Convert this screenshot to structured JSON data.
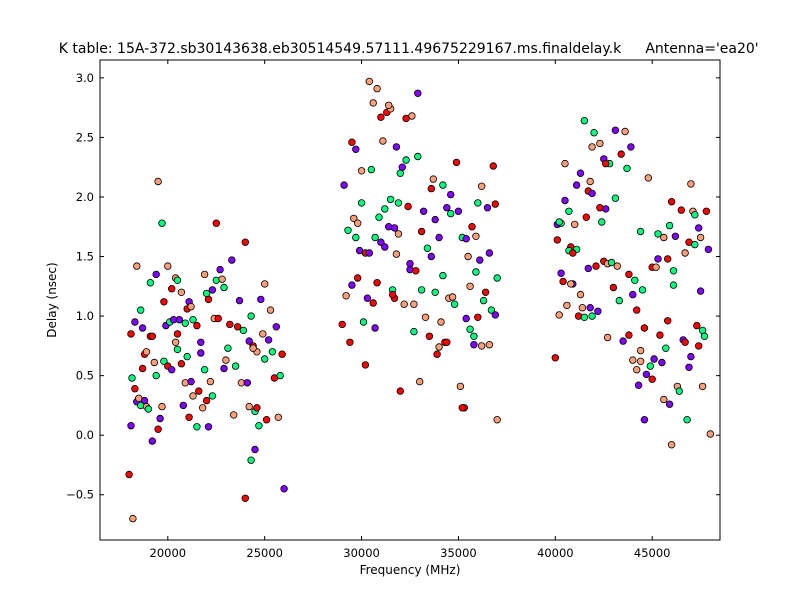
{
  "chart_data": {
    "type": "scatter",
    "title": "K table: 15A-372.sb30143638.eb30514549.57111.49675229167.ms.finaldelay.k",
    "subtitle": "Antenna='ea20'",
    "xlabel": "Frequency (MHz)",
    "ylabel": "Delay (nsec)",
    "xlim": [
      16500,
      48500
    ],
    "ylim": [
      -0.88,
      3.15
    ],
    "xticks": [
      20000,
      25000,
      30000,
      35000,
      40000,
      45000
    ],
    "xtick_labels": [
      "20000",
      "25000",
      "30000",
      "35000",
      "40000",
      "45000"
    ],
    "yticks": [
      -0.5,
      0.0,
      0.5,
      1.0,
      1.5,
      2.0,
      2.5,
      3.0
    ],
    "ytick_labels": [
      "−0.5",
      "0.0",
      "0.5",
      "1.0",
      "1.5",
      "2.0",
      "2.5",
      "3.0"
    ],
    "grid": false,
    "legend": "none",
    "marker": "circle, multicolored, black edge",
    "palette": [
      "#ff0000",
      "#00cc00",
      "#0000ff",
      "#ff00ff",
      "#00ffff",
      "#ffff00",
      "#ff8000",
      "#8000ff",
      "#008000",
      "#800000",
      "#ff69b4",
      "#808080",
      "#ffffff",
      "#000000",
      "#ffa07a",
      "#90ee90",
      "#87cefa",
      "#daa520",
      "#2e8b57",
      "#4b0082",
      "#ff4500",
      "#00ff7f",
      "#c0c0c0",
      "#556b2f",
      "#ff1493",
      "#20b2aa",
      "#b22222",
      "#7b68ee"
    ],
    "points": [
      [
        18000,
        -0.33
      ],
      [
        18100,
        0.08
      ],
      [
        18200,
        -0.7
      ],
      [
        18150,
        0.48
      ],
      [
        18300,
        0.39
      ],
      [
        18400,
        0.28
      ],
      [
        18500,
        0.31
      ],
      [
        18600,
        0.25
      ],
      [
        18700,
        0.56
      ],
      [
        18800,
        0.29
      ],
      [
        18900,
        0.24
      ],
      [
        19000,
        0.22
      ],
      [
        19100,
        0.83
      ],
      [
        19200,
        -0.05
      ],
      [
        19300,
        0.61
      ],
      [
        19400,
        0.5
      ],
      [
        19500,
        0.05
      ],
      [
        19600,
        0.14
      ],
      [
        19700,
        0.24
      ],
      [
        19800,
        0.62
      ],
      [
        18100,
        0.85
      ],
      [
        18300,
        0.95
      ],
      [
        18400,
        1.42
      ],
      [
        18600,
        1.05
      ],
      [
        18800,
        0.68
      ],
      [
        18700,
        0.9
      ],
      [
        18900,
        0.7
      ],
      [
        19100,
        1.28
      ],
      [
        19200,
        0.83
      ],
      [
        19400,
        1.35
      ],
      [
        19500,
        2.13
      ],
      [
        19700,
        1.78
      ],
      [
        19800,
        1.12
      ],
      [
        19900,
        0.92
      ],
      [
        20000,
        1.42
      ],
      [
        20100,
        0.95
      ],
      [
        20200,
        1.23
      ],
      [
        20300,
        0.97
      ],
      [
        20400,
        1.32
      ],
      [
        20500,
        1.3
      ],
      [
        20000,
        0.58
      ],
      [
        20200,
        0.55
      ],
      [
        20400,
        0.78
      ],
      [
        20500,
        0.72
      ],
      [
        20700,
        0.6
      ],
      [
        20800,
        0.25
      ],
      [
        20900,
        0.44
      ],
      [
        21000,
        0.66
      ],
      [
        21100,
        0.15
      ],
      [
        21200,
        0.45
      ],
      [
        21300,
        0.33
      ],
      [
        21500,
        0.07
      ],
      [
        21600,
        0.37
      ],
      [
        21700,
        0.69
      ],
      [
        21800,
        0.23
      ],
      [
        21900,
        0.55
      ],
      [
        22000,
        0.29
      ],
      [
        22100,
        0.07
      ],
      [
        22200,
        0.45
      ],
      [
        22300,
        0.33
      ],
      [
        20500,
        0.85
      ],
      [
        20600,
        0.97
      ],
      [
        20700,
        1.2
      ],
      [
        20900,
        0.94
      ],
      [
        21000,
        1.06
      ],
      [
        21100,
        1.12
      ],
      [
        21200,
        1.08
      ],
      [
        21300,
        0.97
      ],
      [
        21500,
        0.92
      ],
      [
        21700,
        0.78
      ],
      [
        21900,
        1.35
      ],
      [
        22000,
        1.19
      ],
      [
        22100,
        1.14
      ],
      [
        22300,
        1.22
      ],
      [
        22400,
        0.98
      ],
      [
        22500,
        1.3
      ],
      [
        22600,
        0.98
      ],
      [
        22700,
        1.39
      ],
      [
        22800,
        1.31
      ],
      [
        22900,
        1.24
      ],
      [
        22500,
        1.78
      ],
      [
        22900,
        0.56
      ],
      [
        23000,
        0.63
      ],
      [
        23100,
        0.73
      ],
      [
        23200,
        0.93
      ],
      [
        23300,
        1.47
      ],
      [
        23400,
        0.17
      ],
      [
        23500,
        0.58
      ],
      [
        23600,
        0.91
      ],
      [
        23700,
        1.13
      ],
      [
        23800,
        0.44
      ],
      [
        23900,
        0.88
      ],
      [
        24000,
        1.62
      ],
      [
        24100,
        0.44
      ],
      [
        24200,
        0.24
      ],
      [
        24300,
        -0.21
      ],
      [
        24400,
        0.75
      ],
      [
        24500,
        -0.12
      ],
      [
        24600,
        0.7
      ],
      [
        24700,
        0.08
      ],
      [
        24000,
        -0.53
      ],
      [
        24200,
        0.79
      ],
      [
        24400,
        0.73
      ],
      [
        24500,
        0.2
      ],
      [
        24600,
        0.23
      ],
      [
        24800,
        1.14
      ],
      [
        24900,
        0.85
      ],
      [
        25000,
        0.64
      ],
      [
        25100,
        0.13
      ],
      [
        25200,
        0.8
      ],
      [
        25300,
        1.05
      ],
      [
        25400,
        0.7
      ],
      [
        25500,
        0.48
      ],
      [
        25600,
        0.91
      ],
      [
        25700,
        0.15
      ],
      [
        25800,
        0.5
      ],
      [
        25900,
        0.68
      ],
      [
        26000,
        -0.45
      ],
      [
        25000,
        1.27
      ],
      [
        24300,
        1.0
      ],
      [
        29000,
        0.93
      ],
      [
        29100,
        2.1
      ],
      [
        29200,
        1.17
      ],
      [
        29300,
        1.72
      ],
      [
        29400,
        0.78
      ],
      [
        29500,
        1.26
      ],
      [
        29600,
        1.82
      ],
      [
        29700,
        1.66
      ],
      [
        29800,
        1.32
      ],
      [
        29900,
        1.55
      ],
      [
        30000,
        2.22
      ],
      [
        30100,
        0.95
      ],
      [
        30200,
        0.59
      ],
      [
        30300,
        1.15
      ],
      [
        30400,
        2.97
      ],
      [
        30500,
        2.23
      ],
      [
        30600,
        1.11
      ],
      [
        30700,
        0.9
      ],
      [
        30800,
        2.91
      ],
      [
        30900,
        1.83
      ],
      [
        29500,
        2.46
      ],
      [
        29700,
        2.4
      ],
      [
        29800,
        1.78
      ],
      [
        30000,
        1.95
      ],
      [
        30200,
        1.53
      ],
      [
        30400,
        1.53
      ],
      [
        30600,
        2.79
      ],
      [
        30700,
        1.66
      ],
      [
        30800,
        1.28
      ],
      [
        31000,
        1.62
      ],
      [
        31100,
        2.47
      ],
      [
        31200,
        1.9
      ],
      [
        31300,
        2.71
      ],
      [
        31400,
        1.75
      ],
      [
        31500,
        2.74
      ],
      [
        31600,
        1.22
      ],
      [
        31700,
        1.15
      ],
      [
        31800,
        2.42
      ],
      [
        31900,
        1.69
      ],
      [
        32000,
        2.2
      ],
      [
        31000,
        2.67
      ],
      [
        31200,
        1.58
      ],
      [
        31400,
        2.77
      ],
      [
        31500,
        1.98
      ],
      [
        31600,
        1.18
      ],
      [
        31700,
        1.74
      ],
      [
        31800,
        1.52
      ],
      [
        31900,
        1.95
      ],
      [
        32000,
        0.37
      ],
      [
        32100,
        2.25
      ],
      [
        32200,
        1.1
      ],
      [
        32300,
        2.31
      ],
      [
        32400,
        1.92
      ],
      [
        32500,
        1.39
      ],
      [
        32600,
        2.68
      ],
      [
        32700,
        0.87
      ],
      [
        32800,
        1.38
      ],
      [
        32900,
        2.87
      ],
      [
        33000,
        0.45
      ],
      [
        33100,
        1.22
      ],
      [
        32300,
        2.66
      ],
      [
        32500,
        1.44
      ],
      [
        32700,
        1.1
      ],
      [
        32900,
        2.34
      ],
      [
        33100,
        1.71
      ],
      [
        33200,
        1.88
      ],
      [
        33300,
        0.99
      ],
      [
        33400,
        1.57
      ],
      [
        33500,
        0.83
      ],
      [
        33600,
        1.5
      ],
      [
        33700,
        2.15
      ],
      [
        33800,
        1.2
      ],
      [
        33900,
        0.68
      ],
      [
        34000,
        1.66
      ],
      [
        34100,
        0.95
      ],
      [
        34200,
        1.34
      ],
      [
        34300,
        0.78
      ],
      [
        34400,
        1.91
      ],
      [
        34500,
        1.15
      ],
      [
        34600,
        1.86
      ],
      [
        33600,
        2.07
      ],
      [
        33800,
        1.81
      ],
      [
        34000,
        0.74
      ],
      [
        34200,
        2.1
      ],
      [
        34400,
        0.78
      ],
      [
        34600,
        2.02
      ],
      [
        34700,
        1.16
      ],
      [
        34800,
        1.1
      ],
      [
        34900,
        2.29
      ],
      [
        35000,
        1.88
      ],
      [
        35100,
        0.41
      ],
      [
        35200,
        1.66
      ],
      [
        35300,
        0.23
      ],
      [
        35400,
        0.98
      ],
      [
        35500,
        1.5
      ],
      [
        35600,
        0.89
      ],
      [
        35700,
        1.75
      ],
      [
        35800,
        0.76
      ],
      [
        35900,
        1.67
      ],
      [
        36000,
        1.95
      ],
      [
        35200,
        0.23
      ],
      [
        35400,
        1.65
      ],
      [
        35600,
        1.25
      ],
      [
        35800,
        0.83
      ],
      [
        36000,
        0.99
      ],
      [
        36100,
        1.47
      ],
      [
        36200,
        2.09
      ],
      [
        36300,
        1.13
      ],
      [
        36400,
        1.2
      ],
      [
        36500,
        1.91
      ],
      [
        36600,
        0.76
      ],
      [
        36700,
        1.05
      ],
      [
        36800,
        2.26
      ],
      [
        36900,
        1.01
      ],
      [
        37000,
        0.13
      ],
      [
        37000,
        1.32
      ],
      [
        36900,
        1.94
      ],
      [
        36600,
        1.53
      ],
      [
        36200,
        0.75
      ],
      [
        35900,
        1.37
      ],
      [
        40000,
        0.65
      ],
      [
        40100,
        1.77
      ],
      [
        40200,
        1.01
      ],
      [
        40300,
        1.78
      ],
      [
        40400,
        1.29
      ],
      [
        40500,
        1.97
      ],
      [
        40600,
        1.09
      ],
      [
        40700,
        1.88
      ],
      [
        40800,
        1.58
      ],
      [
        40900,
        1.27
      ],
      [
        41000,
        1.77
      ],
      [
        41100,
        1.56
      ],
      [
        41200,
        1.0
      ],
      [
        41300,
        2.2
      ],
      [
        41400,
        1.07
      ],
      [
        41500,
        2.64
      ],
      [
        41600,
        1.83
      ],
      [
        41700,
        1.4
      ],
      [
        41800,
        2.13
      ],
      [
        41900,
        1.0
      ],
      [
        40100,
        1.64
      ],
      [
        40300,
        1.36
      ],
      [
        40500,
        2.28
      ],
      [
        40700,
        1.55
      ],
      [
        40900,
        1.53
      ],
      [
        41100,
        2.1
      ],
      [
        41300,
        1.18
      ],
      [
        41500,
        0.99
      ],
      [
        41700,
        2.05
      ],
      [
        41800,
        1.07
      ],
      [
        41900,
        2.42
      ],
      [
        42000,
        2.54
      ],
      [
        42100,
        1.42
      ],
      [
        42200,
        1.04
      ],
      [
        42300,
        2.45
      ],
      [
        42400,
        1.79
      ],
      [
        42500,
        1.46
      ],
      [
        42600,
        1.9
      ],
      [
        42700,
        1.44
      ],
      [
        42800,
        2.28
      ],
      [
        42300,
        1.91
      ],
      [
        42500,
        2.32
      ],
      [
        42700,
        0.82
      ],
      [
        42900,
        1.45
      ],
      [
        43000,
        1.24
      ],
      [
        43100,
        2.56
      ],
      [
        43200,
        1.42
      ],
      [
        43300,
        1.13
      ],
      [
        43400,
        2.36
      ],
      [
        43500,
        0.79
      ],
      [
        43600,
        2.55
      ],
      [
        43700,
        2.24
      ],
      [
        43800,
        1.35
      ],
      [
        43900,
        2.42
      ],
      [
        44000,
        0.63
      ],
      [
        44100,
        1.3
      ],
      [
        44200,
        1.05
      ],
      [
        44300,
        0.42
      ],
      [
        44400,
        0.71
      ],
      [
        44500,
        1.22
      ],
      [
        43800,
        0.84
      ],
      [
        44000,
        1.18
      ],
      [
        44200,
        0.55
      ],
      [
        44400,
        1.71
      ],
      [
        44600,
        0.9
      ],
      [
        44700,
        0.51
      ],
      [
        44800,
        2.16
      ],
      [
        44900,
        0.58
      ],
      [
        45000,
        1.41
      ],
      [
        45100,
        0.64
      ],
      [
        45200,
        1.41
      ],
      [
        45300,
        1.69
      ],
      [
        45400,
        0.84
      ],
      [
        45500,
        0.61
      ],
      [
        45600,
        1.66
      ],
      [
        45700,
        0.73
      ],
      [
        45800,
        1.48
      ],
      [
        45900,
        0.26
      ],
      [
        46000,
        -0.08
      ],
      [
        46100,
        1.38
      ],
      [
        45000,
        0.47
      ],
      [
        45300,
        1.48
      ],
      [
        45600,
        0.3
      ],
      [
        45900,
        1.76
      ],
      [
        46000,
        1.96
      ],
      [
        46200,
        1.67
      ],
      [
        46300,
        0.41
      ],
      [
        46400,
        0.37
      ],
      [
        46500,
        1.89
      ],
      [
        46600,
        0.8
      ],
      [
        46700,
        1.53
      ],
      [
        46800,
        0.13
      ],
      [
        46900,
        1.62
      ],
      [
        47000,
        0.66
      ],
      [
        47100,
        1.88
      ],
      [
        47200,
        1.85
      ],
      [
        47300,
        0.92
      ],
      [
        47400,
        1.74
      ],
      [
        47500,
        1.66
      ],
      [
        47600,
        0.88
      ],
      [
        46700,
        0.78
      ],
      [
        46900,
        0.57
      ],
      [
        47000,
        2.11
      ],
      [
        47200,
        1.6
      ],
      [
        47400,
        0.75
      ],
      [
        47500,
        1.21
      ],
      [
        47600,
        0.41
      ],
      [
        47700,
        0.83
      ],
      [
        47800,
        1.88
      ],
      [
        47900,
        1.56
      ],
      [
        48000,
        0.01
      ],
      [
        46100,
        1.26
      ],
      [
        45800,
        0.96
      ],
      [
        44600,
        0.13
      ],
      [
        44400,
        0.62
      ],
      [
        43100,
        1.99
      ],
      [
        42600,
        2.28
      ],
      [
        41900,
        2.03
      ],
      [
        40800,
        1.27
      ],
      [
        40200,
        1.79
      ]
    ]
  }
}
